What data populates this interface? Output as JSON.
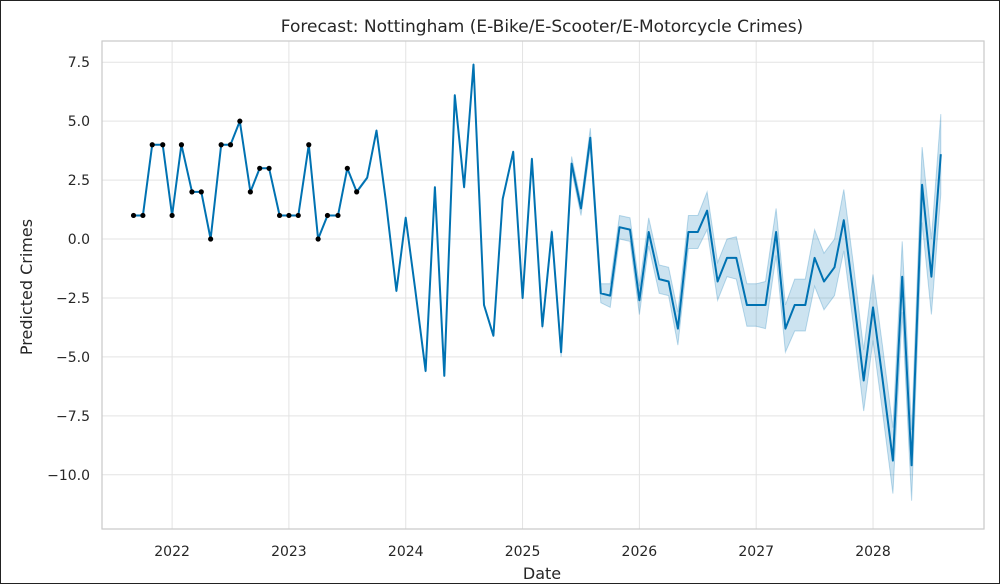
{
  "chart_data": {
    "type": "line",
    "title": "Forecast: Nottingham (E-Bike/E-Scooter/E-Motorcycle Crimes)",
    "xlabel": "Date",
    "ylabel": "Predicted Crimes",
    "xlim": [
      2021.4,
      2028.95
    ],
    "ylim": [
      -12.3,
      8.4
    ],
    "x_ticks": [
      {
        "value": 2022,
        "label": "2022"
      },
      {
        "value": 2023,
        "label": "2023"
      },
      {
        "value": 2024,
        "label": "2024"
      },
      {
        "value": 2025,
        "label": "2025"
      },
      {
        "value": 2026,
        "label": "2026"
      },
      {
        "value": 2027,
        "label": "2027"
      },
      {
        "value": 2028,
        "label": "2028"
      }
    ],
    "y_ticks": [
      {
        "value": 7.5,
        "label": "7.5"
      },
      {
        "value": 5.0,
        "label": "5.0"
      },
      {
        "value": 2.5,
        "label": "2.5"
      },
      {
        "value": 0.0,
        "label": "0.0"
      },
      {
        "value": -2.5,
        "label": "−2.5"
      },
      {
        "value": -5.0,
        "label": "−5.0"
      },
      {
        "value": -7.5,
        "label": "−7.5"
      },
      {
        "value": -10.0,
        "label": "−10.0"
      }
    ],
    "grid": true,
    "colors": {
      "line": "#0072b2",
      "band": "#0072b2",
      "points": "#000000"
    },
    "actuals": {
      "x": [
        2021.67,
        2021.75,
        2021.83,
        2021.92,
        2022.0,
        2022.08,
        2022.17,
        2022.25,
        2022.33,
        2022.42,
        2022.5,
        2022.58,
        2022.67,
        2022.75,
        2022.83,
        2022.92,
        2023.0,
        2023.08,
        2023.17,
        2023.25,
        2023.33,
        2023.42,
        2023.5,
        2023.58
      ],
      "y": [
        1,
        1,
        4,
        4,
        1,
        4,
        2,
        2,
        0,
        4,
        4,
        5,
        2,
        3,
        3,
        1,
        1,
        1,
        4,
        0,
        1,
        1,
        3,
        2
      ]
    },
    "forecast": {
      "x": [
        2021.67,
        2021.75,
        2021.83,
        2021.92,
        2022.0,
        2022.08,
        2022.17,
        2022.25,
        2022.33,
        2022.42,
        2022.5,
        2022.58,
        2022.67,
        2022.75,
        2022.83,
        2022.92,
        2023.0,
        2023.08,
        2023.17,
        2023.25,
        2023.33,
        2023.42,
        2023.5,
        2023.58,
        2023.67,
        2023.75,
        2023.83,
        2023.92,
        2024.0,
        2024.08,
        2024.17,
        2024.25,
        2024.33,
        2024.42,
        2024.5,
        2024.58,
        2024.67,
        2024.75,
        2024.83,
        2024.92,
        2025.0,
        2025.08,
        2025.17,
        2025.25,
        2025.33,
        2025.42,
        2025.5,
        2025.58,
        2025.67,
        2025.75,
        2025.83,
        2025.92,
        2026.0,
        2026.08,
        2026.17,
        2026.25,
        2026.33,
        2026.42,
        2026.5,
        2026.58,
        2026.67,
        2026.75,
        2026.83,
        2026.92,
        2027.0,
        2027.08,
        2027.17,
        2027.25,
        2027.33,
        2027.42,
        2027.5,
        2027.58,
        2027.67,
        2027.75,
        2027.83,
        2027.92,
        2028.0,
        2028.08,
        2028.17,
        2028.25,
        2028.33,
        2028.42,
        2028.5,
        2028.58
      ],
      "yhat": [
        1,
        1,
        4,
        4,
        1,
        4,
        2,
        2,
        0,
        4,
        4,
        5,
        2,
        3,
        3,
        1,
        1,
        1,
        4,
        0,
        1,
        1,
        3,
        2,
        2.6,
        4.6,
        1.6,
        -2.2,
        0.9,
        -2.1,
        -5.6,
        2.2,
        -5.8,
        6.1,
        2.2,
        7.4,
        -2.8,
        -4.1,
        1.7,
        3.7,
        -2.5,
        3.4,
        -3.7,
        0.3,
        -4.8,
        3.2,
        1.3,
        4.3,
        -2.3,
        -2.4,
        0.5,
        0.4,
        -2.6,
        0.3,
        -1.7,
        -1.8,
        -3.8,
        0.3,
        0.3,
        1.2,
        -1.8,
        -0.8,
        -0.8,
        -2.8,
        -2.8,
        -2.8,
        0.3,
        -3.8,
        -2.8,
        -2.8,
        -0.8,
        -1.8,
        -1.2,
        0.8,
        -2.3,
        -6.0,
        -2.9,
        -5.9,
        -9.4,
        -1.6,
        -9.6,
        2.3,
        -1.6,
        3.6
      ],
      "band_x": [
        2023.58,
        2023.67,
        2023.75,
        2023.83,
        2023.92,
        2024.0,
        2024.08,
        2024.17,
        2024.25,
        2024.33,
        2024.42,
        2024.5,
        2024.58,
        2024.67,
        2024.75,
        2024.83,
        2024.92,
        2025.0,
        2025.08,
        2025.17,
        2025.25,
        2025.33,
        2025.42,
        2025.5,
        2025.58,
        2025.67,
        2025.75,
        2025.83,
        2025.92,
        2026.0,
        2026.08,
        2026.17,
        2026.25,
        2026.33,
        2026.42,
        2026.5,
        2026.58,
        2026.67,
        2026.75,
        2026.83,
        2026.92,
        2027.0,
        2027.08,
        2027.17,
        2027.25,
        2027.33,
        2027.42,
        2027.5,
        2027.58,
        2027.67,
        2027.75,
        2027.83,
        2027.92,
        2028.0,
        2028.08,
        2028.17,
        2028.25,
        2028.33,
        2028.42,
        2028.5,
        2028.58
      ],
      "band_half_width": [
        0.05,
        0.05,
        0.05,
        0.05,
        0.05,
        0.05,
        0.05,
        0.05,
        0.05,
        0.05,
        0.05,
        0.05,
        0.05,
        0.05,
        0.05,
        0.05,
        0.05,
        0.05,
        0.05,
        0.1,
        0.1,
        0.2,
        0.3,
        0.3,
        0.4,
        0.4,
        0.5,
        0.5,
        0.5,
        0.6,
        0.6,
        0.6,
        0.6,
        0.7,
        0.7,
        0.7,
        0.8,
        0.8,
        0.8,
        0.9,
        0.9,
        0.9,
        1.0,
        1.0,
        1.0,
        1.1,
        1.1,
        1.2,
        1.2,
        1.2,
        1.3,
        1.3,
        1.3,
        1.4,
        1.4,
        1.4,
        1.5,
        1.5,
        1.6,
        1.6,
        1.7
      ]
    }
  }
}
